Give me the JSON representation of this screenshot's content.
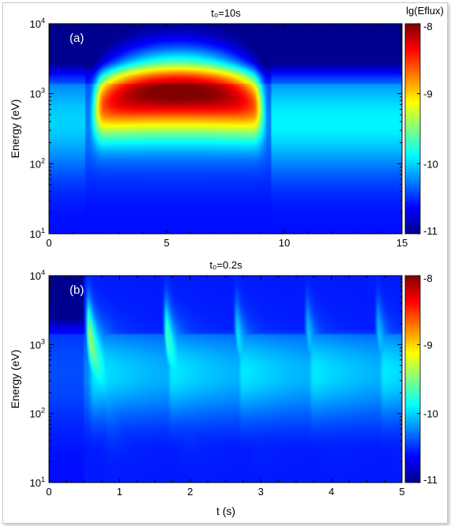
{
  "colorbar_title": "lg(Eflux)",
  "colormap": [
    "#00008f",
    "#0000ff",
    "#0080ff",
    "#00ffff",
    "#80ff80",
    "#ffff00",
    "#ff8000",
    "#ff0000",
    "#800000"
  ],
  "chart_data": [
    {
      "type": "heatmap",
      "title": "t₀=10s",
      "panel_label": "(a)",
      "xlabel": "",
      "ylabel": "Energy (eV)",
      "xlim": [
        0,
        15
      ],
      "ylim": [
        10,
        10000
      ],
      "yscale": "log",
      "x_ticks": [
        "0",
        "5",
        "10",
        "15"
      ],
      "y_ticks": [
        {
          "base": "10",
          "exp": "1"
        },
        {
          "base": "10",
          "exp": "2"
        },
        {
          "base": "10",
          "exp": "3"
        },
        {
          "base": "10",
          "exp": "4"
        }
      ],
      "colorbar": {
        "range": [
          -11,
          -8
        ],
        "ticks": [
          "-8",
          "-9",
          "-10",
          "-11"
        ]
      },
      "features": [
        {
          "shape": "arch",
          "t_start": 2,
          "t_end": 9.5,
          "t_peak": 5.5,
          "energy_peak_eV": 1000,
          "peak_lg_eflux": -8.2
        }
      ]
    },
    {
      "type": "heatmap",
      "title": "t₀=0.2s",
      "panel_label": "(b)",
      "xlabel": "t (s)",
      "ylabel": "Energy (eV)",
      "xlim": [
        0,
        5
      ],
      "ylim": [
        10,
        10000
      ],
      "yscale": "log",
      "x_ticks": [
        "0",
        "1",
        "2",
        "3",
        "4",
        "5"
      ],
      "y_ticks": [
        {
          "base": "10",
          "exp": "1"
        },
        {
          "base": "10",
          "exp": "2"
        },
        {
          "base": "10",
          "exp": "3"
        },
        {
          "base": "10",
          "exp": "4"
        }
      ],
      "colorbar": {
        "range": [
          -11,
          -8
        ],
        "ticks": [
          "-8",
          "-9",
          "-10",
          "-11"
        ]
      },
      "features": [
        {
          "shape": "dispersive-burst",
          "t_start": 0.55,
          "peak_lg_eflux": -9.3
        },
        {
          "shape": "dispersive-burst",
          "t_start": 1.65,
          "peak_lg_eflux": -9.6
        },
        {
          "shape": "dispersive-burst",
          "t_start": 2.65,
          "peak_lg_eflux": -9.9
        },
        {
          "shape": "dispersive-burst",
          "t_start": 3.65,
          "peak_lg_eflux": -10.0
        },
        {
          "shape": "dispersive-burst",
          "t_start": 4.65,
          "peak_lg_eflux": -10.0
        }
      ]
    }
  ]
}
